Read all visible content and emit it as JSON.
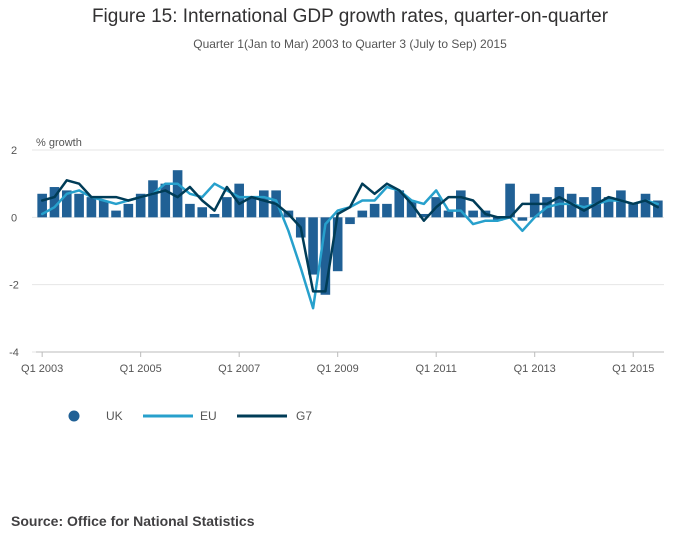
{
  "chart_data": {
    "type": "bar+line",
    "title": "Figure 15: International GDP growth rates, quarter-on-quarter",
    "subtitle": "Quarter 1(Jan to Mar) 2003 to Quarter 3 (July to Sep) 2015",
    "ylabel": "% growth",
    "ylim": [
      -4,
      2
    ],
    "yticks": [
      "2",
      "0",
      "-2",
      "-4"
    ],
    "x_tick_labels": [
      "Q1 2003",
      "Q1 2005",
      "Q1 2007",
      "Q1 2009",
      "Q1 2011",
      "Q1 2013",
      "Q1 2015"
    ],
    "x_tick_quarter_index": [
      0,
      8,
      16,
      24,
      32,
      40,
      48
    ],
    "num_quarters": 51,
    "series": [
      {
        "name": "UK",
        "type": "bar",
        "color": "#206095",
        "values": [
          0.7,
          0.9,
          0.8,
          0.7,
          0.6,
          0.5,
          0.2,
          0.4,
          0.7,
          1.1,
          1.0,
          1.4,
          0.4,
          0.3,
          0.1,
          0.6,
          1.0,
          0.6,
          0.8,
          0.8,
          0.2,
          -0.6,
          -1.7,
          -2.3,
          -1.6,
          -0.2,
          0.2,
          0.4,
          0.4,
          0.8,
          0.5,
          0.1,
          0.6,
          0.2,
          0.8,
          0.2,
          0.2,
          -0.1,
          1.0,
          -0.1,
          0.7,
          0.6,
          0.9,
          0.7,
          0.6,
          0.9,
          0.6,
          0.8,
          0.4,
          0.7,
          0.5
        ]
      },
      {
        "name": "EU",
        "type": "line",
        "color": "#27a0cc",
        "values": [
          0.1,
          0.3,
          0.7,
          0.8,
          0.6,
          0.5,
          0.4,
          0.5,
          0.6,
          0.7,
          1.0,
          1.0,
          0.7,
          0.6,
          1.0,
          0.8,
          0.6,
          0.6,
          0.6,
          0.5,
          -0.4,
          -1.5,
          -2.7,
          -0.2,
          0.2,
          0.3,
          0.5,
          0.5,
          0.9,
          0.8,
          0.5,
          0.4,
          0.8,
          0.2,
          0.2,
          -0.2,
          -0.1,
          -0.1,
          0.0,
          -0.4,
          0.0,
          0.3,
          0.4,
          0.4,
          0.3,
          0.4,
          0.5,
          0.5,
          0.4,
          0.5,
          0.4
        ]
      },
      {
        "name": "G7",
        "type": "line",
        "color": "#003c57",
        "values": [
          0.5,
          0.6,
          1.1,
          1.0,
          0.6,
          0.6,
          0.6,
          0.5,
          0.6,
          0.7,
          0.8,
          0.6,
          0.9,
          0.5,
          0.2,
          0.9,
          0.4,
          0.6,
          0.5,
          0.4,
          0.1,
          -0.3,
          -2.2,
          -2.2,
          0.1,
          0.3,
          1.0,
          0.7,
          1.0,
          0.8,
          0.4,
          -0.1,
          0.3,
          0.6,
          0.6,
          0.5,
          0.1,
          0.0,
          0.0,
          0.4,
          0.4,
          0.4,
          0.6,
          0.4,
          0.2,
          0.4,
          0.6,
          0.5,
          0.4,
          0.5,
          0.3
        ]
      }
    ],
    "legend": [
      "UK",
      "EU",
      "G7"
    ],
    "legend_position": "bottom-left"
  },
  "source": "Source: Office for National Statistics"
}
